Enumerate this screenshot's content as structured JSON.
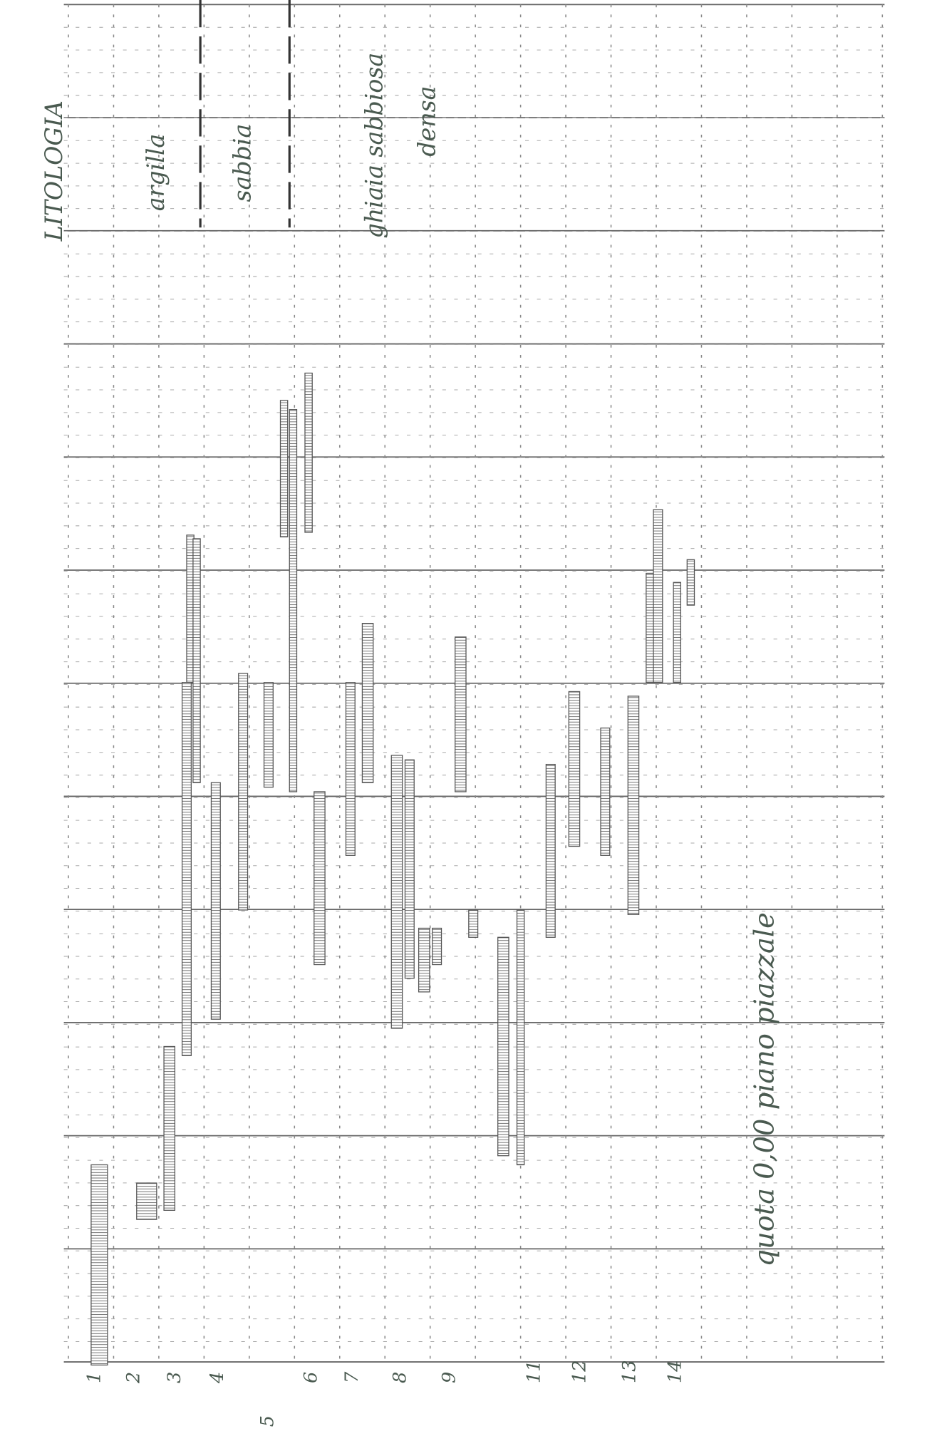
{
  "header": {
    "title": "LITOLOGIA"
  },
  "legend": [
    "argilla",
    "sabbia",
    "ghiaia sabbiosa",
    "densa"
  ],
  "note": "quota 0,00 piano piazzale",
  "columns": [
    "1",
    "2",
    "3",
    "4",
    "5",
    "6",
    "7",
    "8",
    "9",
    "11",
    "12",
    "13",
    "14"
  ]
}
